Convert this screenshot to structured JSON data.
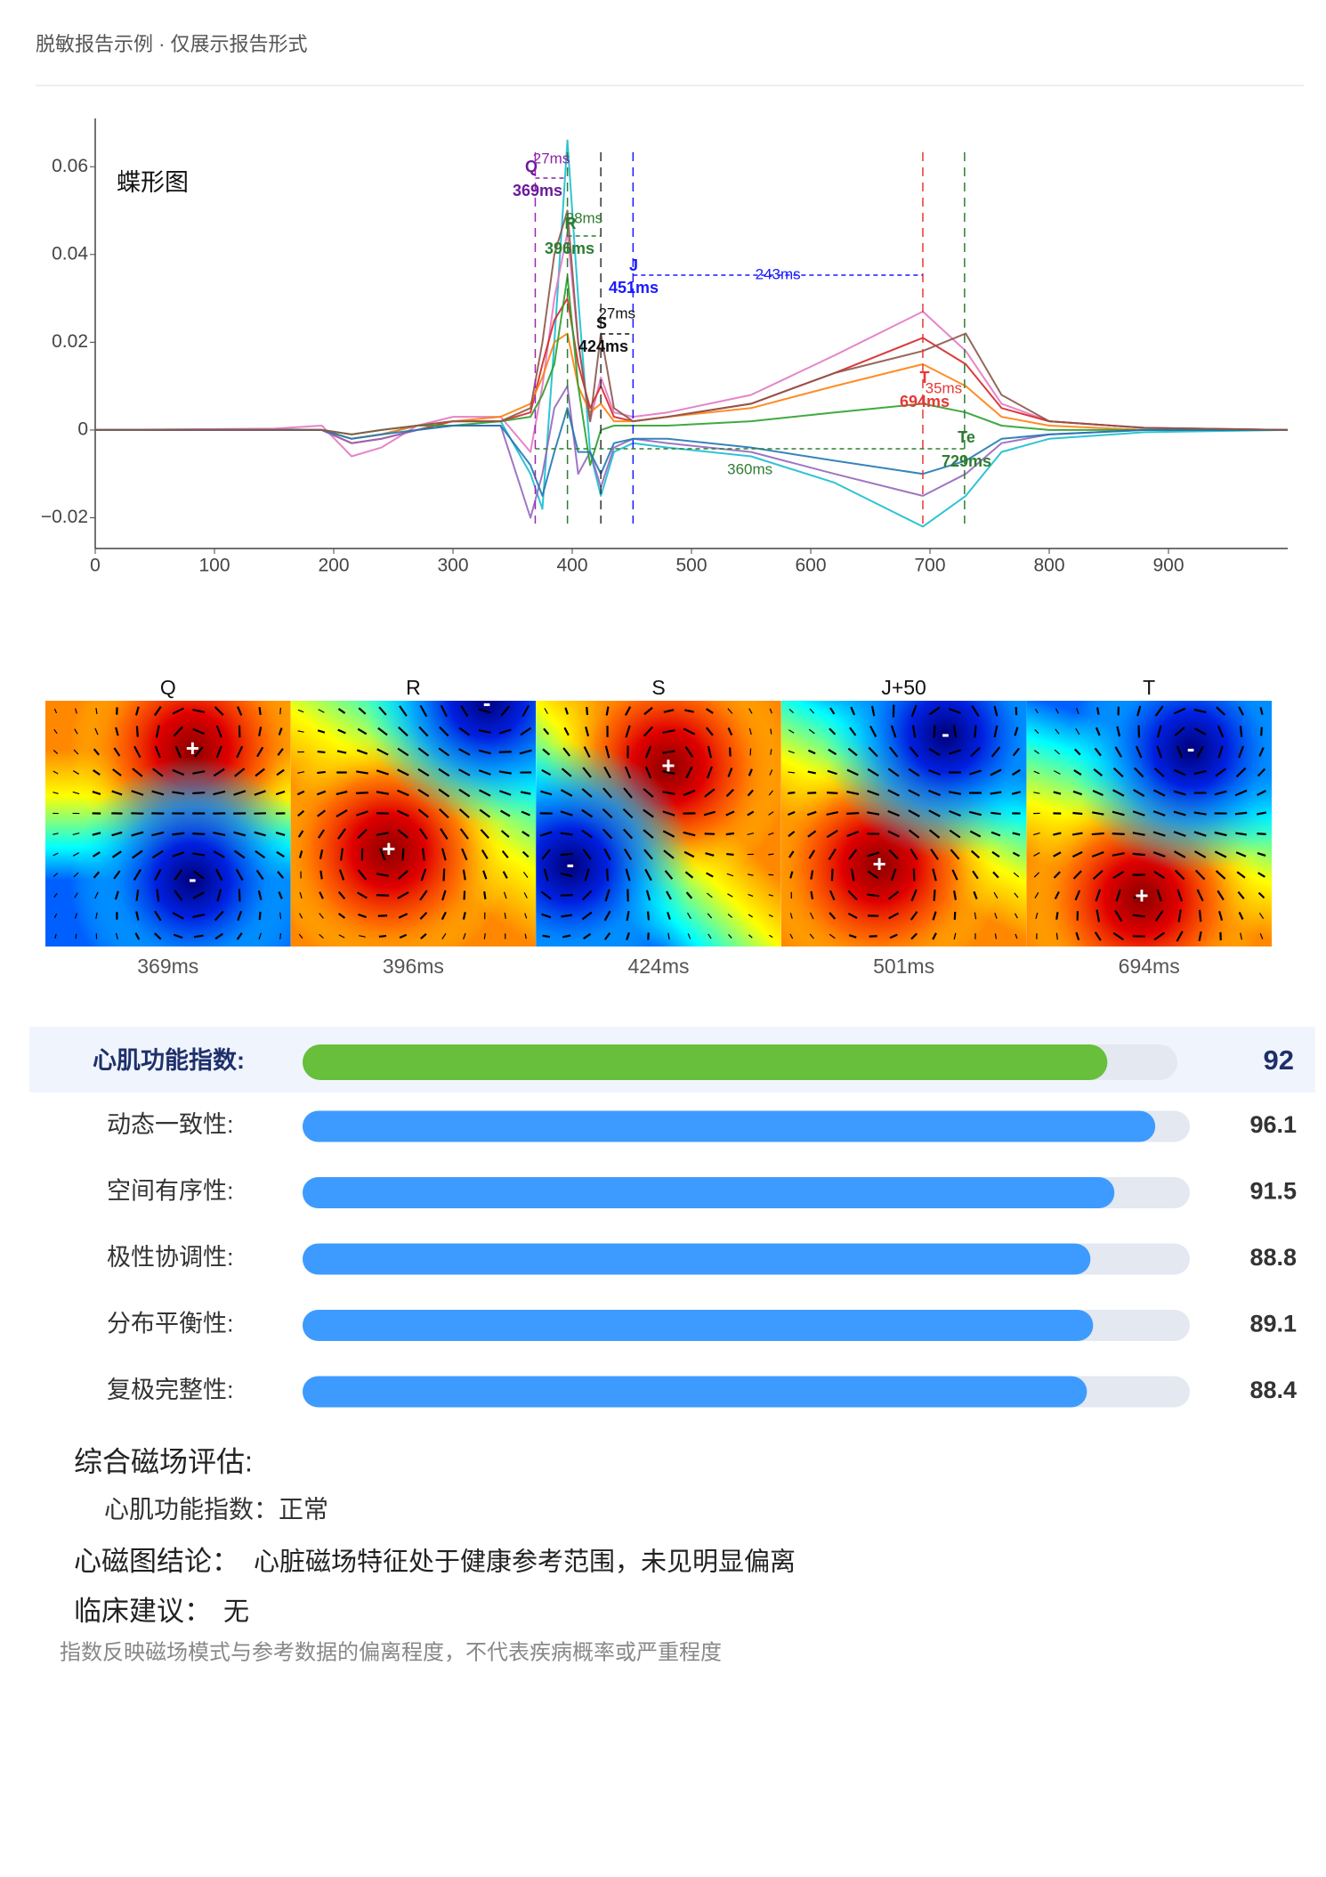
{
  "header": {
    "title": "脱敏报告示例 · 仅展示报告形式"
  },
  "chart_data": {
    "type": "line",
    "title": "蝶形图",
    "x": [
      0,
      150,
      190,
      215,
      240,
      270,
      300,
      340,
      365,
      375,
      385,
      396,
      405,
      415,
      424,
      435,
      451,
      480,
      550,
      620,
      694,
      730,
      760,
      800,
      880,
      1000
    ],
    "series": [
      {
        "color": "#17becf",
        "values": [
          0,
          0.0002,
          0,
          -0.002,
          -0.001,
          0.001,
          0.002,
          0.002,
          -0.01,
          -0.018,
          0.02,
          0.066,
          0.03,
          -0.005,
          -0.015,
          -0.005,
          -0.003,
          -0.004,
          -0.006,
          -0.012,
          -0.022,
          -0.015,
          -0.005,
          -0.002,
          -0.0005,
          0
        ]
      },
      {
        "color": "#e377c2",
        "values": [
          0,
          0.0003,
          0.001,
          -0.006,
          -0.004,
          0.001,
          0.003,
          0.003,
          -0.005,
          0.01,
          0.03,
          0.045,
          0.02,
          0.002,
          0.012,
          0.004,
          0.003,
          0.004,
          0.008,
          0.017,
          0.027,
          0.018,
          0.006,
          0.002,
          0.0005,
          0
        ]
      },
      {
        "color": "#d62728",
        "values": [
          0,
          0,
          0,
          -0.003,
          -0.002,
          0,
          0.002,
          0.002,
          0.004,
          0.015,
          0.025,
          0.03,
          0.015,
          0.005,
          0.01,
          0.003,
          0.002,
          0.003,
          0.006,
          0.013,
          0.021,
          0.015,
          0.005,
          0.002,
          0.0005,
          0
        ]
      },
      {
        "color": "#ff7f0e",
        "values": [
          0,
          0,
          0,
          -0.002,
          -0.001,
          0.001,
          0.002,
          0.003,
          0.006,
          0.012,
          0.02,
          0.022,
          0.01,
          0.004,
          0.006,
          0.002,
          0.002,
          0.003,
          0.005,
          0.01,
          0.015,
          0.01,
          0.003,
          0.001,
          0,
          0
        ]
      },
      {
        "color": "#9467bd",
        "values": [
          0,
          0,
          0,
          -0.003,
          -0.002,
          0,
          0.001,
          0.001,
          -0.02,
          -0.01,
          0.005,
          0.01,
          -0.01,
          -0.005,
          -0.013,
          -0.004,
          -0.002,
          -0.003,
          -0.005,
          -0.01,
          -0.015,
          -0.01,
          -0.003,
          -0.001,
          0,
          0
        ]
      },
      {
        "color": "#2ca02c",
        "values": [
          0,
          0,
          0,
          -0.001,
          0,
          0.001,
          0.001,
          0.002,
          0.003,
          0.008,
          0.015,
          0.035,
          0.01,
          -0.008,
          0,
          0.001,
          0.001,
          0.001,
          0.002,
          0.004,
          0.006,
          0.004,
          0.001,
          0,
          0,
          0
        ]
      },
      {
        "color": "#1f77b4",
        "values": [
          0,
          0,
          0,
          -0.002,
          -0.001,
          0,
          0.001,
          0.001,
          -0.008,
          -0.015,
          -0.005,
          0.005,
          -0.005,
          -0.005,
          -0.01,
          -0.003,
          -0.002,
          -0.002,
          -0.004,
          -0.007,
          -0.01,
          -0.007,
          -0.002,
          -0.001,
          0,
          0
        ]
      },
      {
        "color": "#8c564b",
        "values": [
          0,
          0,
          0,
          -0.001,
          0,
          0.001,
          0.002,
          0.002,
          0.005,
          0.02,
          0.04,
          0.05,
          0.02,
          0.002,
          0.022,
          0.005,
          0.002,
          0.003,
          0.006,
          0.013,
          0.018,
          0.022,
          0.008,
          0.002,
          0.0005,
          0
        ]
      }
    ],
    "xlim": [
      0,
      1000
    ],
    "ylim": [
      -0.027,
      0.071
    ],
    "xticks": [
      0,
      100,
      200,
      300,
      400,
      500,
      600,
      700,
      800,
      900
    ],
    "yticks": [
      {
        "value": -0.02,
        "label": "−0.02"
      },
      0,
      0.02,
      0.04,
      0.06
    ],
    "markers": [
      {
        "name": "Q",
        "x": 369,
        "label": "369ms",
        "color": "#9c27b0",
        "text_color": "#6a1b9a"
      },
      {
        "name": "R",
        "x": 396,
        "label": "396ms",
        "color": "#2e7d32",
        "text_color": "#2e7d32"
      },
      {
        "name": "S",
        "x": 424,
        "label": "424ms",
        "color": "#333333",
        "text_color": "#111111"
      },
      {
        "name": "J",
        "x": 451,
        "label": "451ms",
        "color": "#1a1aff",
        "text_color": "#1a1aff"
      },
      {
        "name": "T",
        "x": 694,
        "label": "694ms",
        "color": "#e53935",
        "text_color": "#e53935"
      },
      {
        "name": "Te",
        "x": 729,
        "label": "729ms",
        "color": "#2e7d32",
        "text_color": "#2e7d32"
      }
    ],
    "intervals": [
      {
        "label": "27ms",
        "from": 369,
        "to": 396,
        "color": "#8e24aa"
      },
      {
        "label": "28ms",
        "from": 396,
        "to": 424,
        "color": "#2e7d32"
      },
      {
        "label": "27ms",
        "from": 424,
        "to": 451,
        "color": "#111111"
      },
      {
        "label": "243ms",
        "from": 451,
        "to": 694,
        "color": "#1a1aff"
      },
      {
        "label": "35ms",
        "from": 694,
        "to": 729,
        "color": "#e53935"
      },
      {
        "label": "360ms",
        "from": 369,
        "to": 729,
        "color": "#2e7d32"
      }
    ]
  },
  "maps": {
    "panels": [
      {
        "title": "Q",
        "time": "369ms",
        "plus": "+",
        "minus": "-"
      },
      {
        "title": "R",
        "time": "396ms",
        "plus": "+",
        "minus": "-"
      },
      {
        "title": "S",
        "time": "424ms",
        "plus": "+",
        "minus": "-"
      },
      {
        "title": "J+50",
        "time": "501ms",
        "plus": "+",
        "minus": "-"
      },
      {
        "title": "T",
        "time": "694ms",
        "plus": "+",
        "minus": "-"
      }
    ]
  },
  "indices": {
    "xlim": [
      0,
      100
    ],
    "main": {
      "label": "心肌功能指数:",
      "value": 92
    },
    "items": [
      {
        "label": "动态一致性:",
        "value": 96.1
      },
      {
        "label": "空间有序性:",
        "value": 91.5
      },
      {
        "label": "极性协调性:",
        "value": 88.8
      },
      {
        "label": "分布平衡性:",
        "value": 89.1
      },
      {
        "label": "复极完整性:",
        "value": 88.4
      }
    ]
  },
  "summary": {
    "assessment": {
      "title": "综合磁场评估:",
      "detail": "心肌功能指数：正常"
    },
    "conclusion": {
      "label": "心磁图结论：",
      "text": "心脏磁场特征处于健康参考范围，未见明显偏离"
    },
    "advice": {
      "label": "临床建议：",
      "text": "无"
    },
    "note": "指数反映磁场模式与参考数据的偏离程度，不代表疾病概率或严重程度"
  }
}
